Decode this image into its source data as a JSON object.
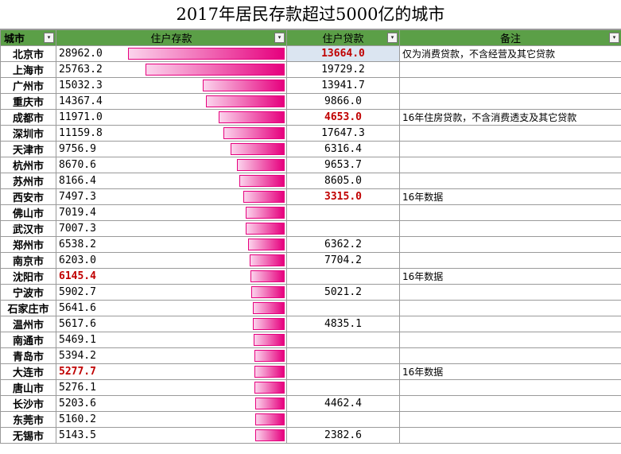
{
  "title": "2017年居民存款超过5000亿的城市",
  "header": {
    "city": "城市",
    "deposit": "住户存款",
    "loan": "住户贷款",
    "note": "备注"
  },
  "filter_icon": "▾",
  "colors": {
    "header_bg": "#5b9f47",
    "bar_start": "#fbd3ec",
    "bar_end": "#e6007e",
    "highlight": "#c00000"
  },
  "chart_data": {
    "type": "bar",
    "title": "2017年居民存款超过5000亿的城市",
    "columns": [
      "城市",
      "住户存款",
      "住户贷款",
      "备注"
    ],
    "rows": [
      {
        "city": "北京市",
        "deposit": "28962.0",
        "loan": "13664.0",
        "note": "仅为消费贷款，不含经营及其它贷款",
        "loan_red": true
      },
      {
        "city": "上海市",
        "deposit": "25763.2",
        "loan": "19729.2",
        "note": ""
      },
      {
        "city": "广州市",
        "deposit": "15032.3",
        "loan": "13941.7",
        "note": ""
      },
      {
        "city": "重庆市",
        "deposit": "14367.4",
        "loan": "9866.0",
        "note": ""
      },
      {
        "city": "成都市",
        "deposit": "11971.0",
        "loan": "4653.0",
        "note": "16年住房贷款，不含消费透支及其它贷款",
        "loan_red": true
      },
      {
        "city": "深圳市",
        "deposit": "11159.8",
        "loan": "17647.3",
        "note": ""
      },
      {
        "city": "天津市",
        "deposit": "9756.9",
        "loan": "6316.4",
        "note": ""
      },
      {
        "city": "杭州市",
        "deposit": "8670.6",
        "loan": "9653.7",
        "note": ""
      },
      {
        "city": "苏州市",
        "deposit": "8166.4",
        "loan": "8605.0",
        "note": ""
      },
      {
        "city": "西安市",
        "deposit": "7497.3",
        "loan": "3315.0",
        "note": "16年数据",
        "loan_red": true
      },
      {
        "city": "佛山市",
        "deposit": "7019.4",
        "loan": "",
        "note": ""
      },
      {
        "city": "武汉市",
        "deposit": "7007.3",
        "loan": "",
        "note": ""
      },
      {
        "city": "郑州市",
        "deposit": "6538.2",
        "loan": "6362.2",
        "note": ""
      },
      {
        "city": "南京市",
        "deposit": "6203.0",
        "loan": "7704.2",
        "note": ""
      },
      {
        "city": "沈阳市",
        "deposit": "6145.4",
        "loan": "",
        "note": "16年数据",
        "dep_red": true
      },
      {
        "city": "宁波市",
        "deposit": "5902.7",
        "loan": "5021.2",
        "note": ""
      },
      {
        "city": "石家庄市",
        "deposit": "5641.6",
        "loan": "",
        "note": ""
      },
      {
        "city": "温州市",
        "deposit": "5617.6",
        "loan": "4835.1",
        "note": ""
      },
      {
        "city": "南通市",
        "deposit": "5469.1",
        "loan": "",
        "note": ""
      },
      {
        "city": "青岛市",
        "deposit": "5394.2",
        "loan": "",
        "note": ""
      },
      {
        "city": "大连市",
        "deposit": "5277.7",
        "loan": "",
        "note": "16年数据",
        "dep_red": true
      },
      {
        "city": "唐山市",
        "deposit": "5276.1",
        "loan": "",
        "note": ""
      },
      {
        "city": "长沙市",
        "deposit": "5203.6",
        "loan": "4462.4",
        "note": ""
      },
      {
        "city": "东莞市",
        "deposit": "5160.2",
        "loan": "",
        "note": ""
      },
      {
        "city": "无锡市",
        "deposit": "5143.5",
        "loan": "2382.6",
        "note": ""
      }
    ]
  }
}
